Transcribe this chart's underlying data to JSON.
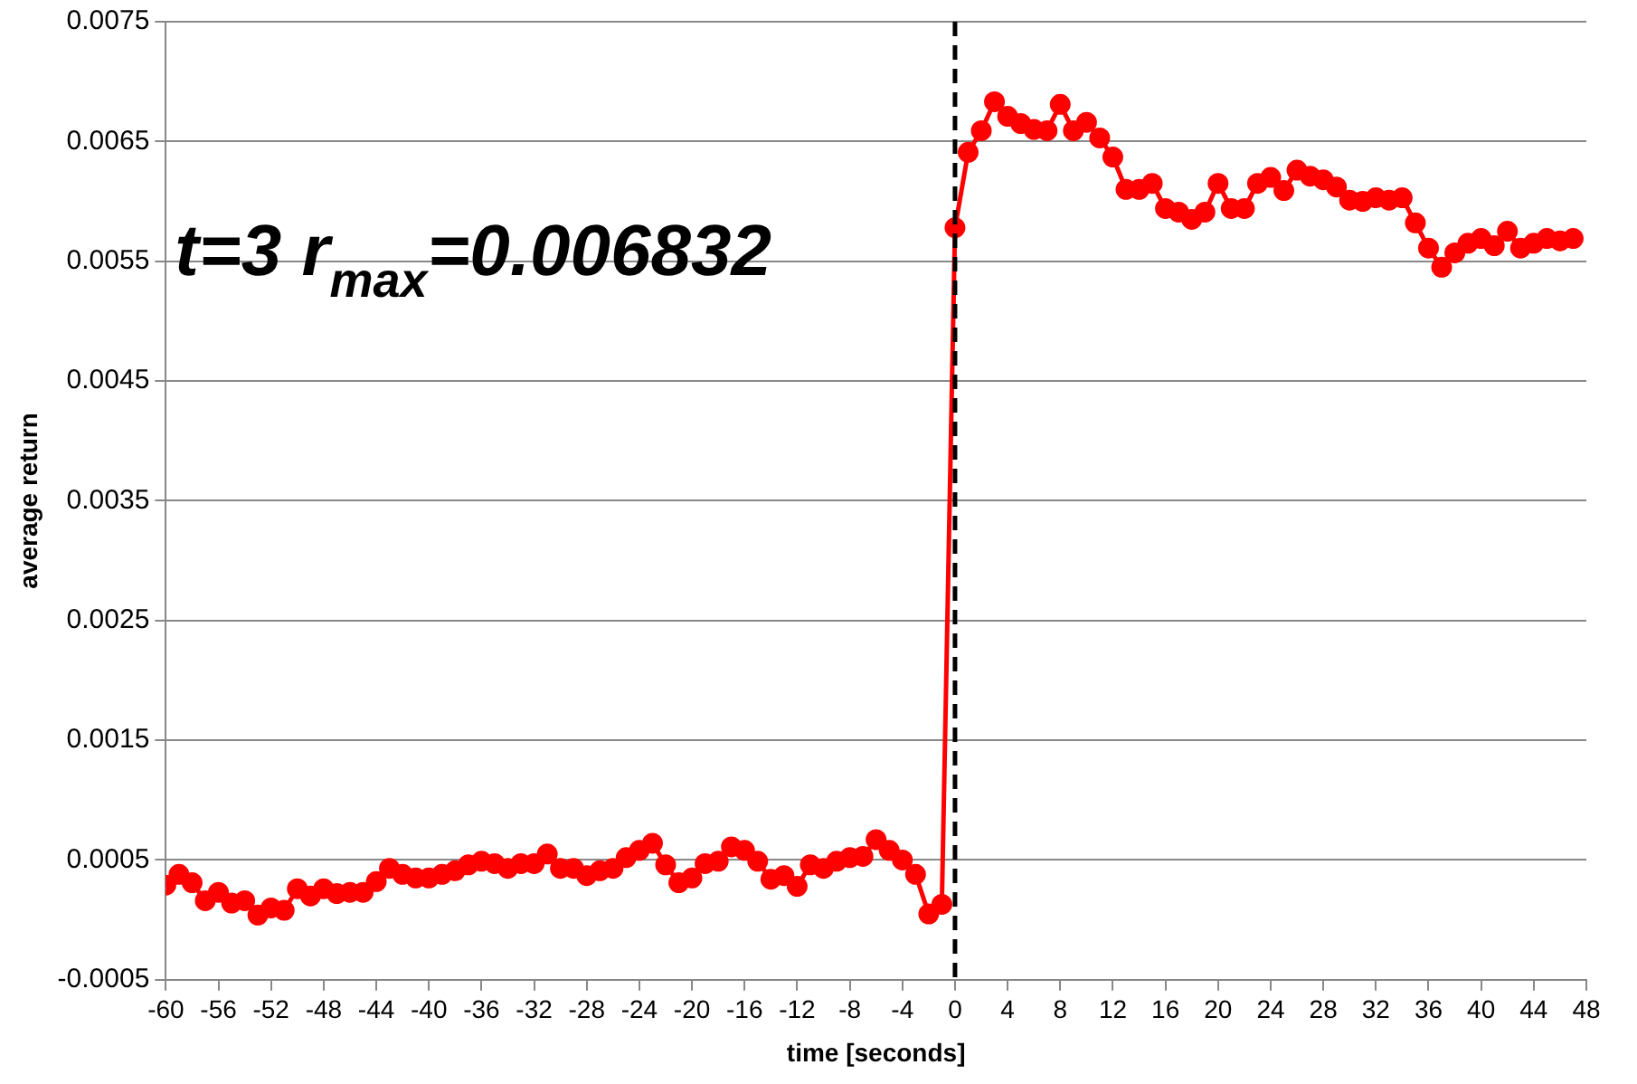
{
  "chart_data": {
    "type": "line",
    "xlabel": "time [seconds]",
    "ylabel": "average return",
    "x": [
      -60,
      -59,
      -58,
      -57,
      -56,
      -55,
      -54,
      -53,
      -52,
      -51,
      -50,
      -49,
      -48,
      -47,
      -46,
      -45,
      -44,
      -43,
      -42,
      -41,
      -40,
      -39,
      -38,
      -37,
      -36,
      -35,
      -34,
      -33,
      -32,
      -31,
      -30,
      -29,
      -28,
      -27,
      -26,
      -25,
      -24,
      -23,
      -22,
      -21,
      -20,
      -19,
      -18,
      -17,
      -16,
      -15,
      -14,
      -13,
      -12,
      -11,
      -10,
      -9,
      -8,
      -7,
      -6,
      -5,
      -4,
      -3,
      -2,
      -1,
      0,
      1,
      2,
      3,
      4,
      5,
      6,
      7,
      8,
      9,
      10,
      11,
      12,
      13,
      14,
      15,
      16,
      17,
      18,
      19,
      20,
      21,
      22,
      23,
      24,
      25,
      26,
      27,
      28,
      29,
      30,
      31,
      32,
      33,
      34,
      35,
      36,
      37,
      38,
      39,
      40,
      41,
      42,
      43,
      44,
      45,
      46,
      47
    ],
    "series": [
      {
        "color": "#ff0000",
        "values": [
          0.00029,
          0.00038,
          0.00031,
          0.00016,
          0.00023,
          0.00014,
          0.00016,
          4e-05,
          0.0001,
          8e-05,
          0.00026,
          0.0002,
          0.00026,
          0.00022,
          0.00023,
          0.00023,
          0.00032,
          0.00043,
          0.00038,
          0.00035,
          0.00035,
          0.00038,
          0.00041,
          0.00046,
          0.00049,
          0.00047,
          0.00043,
          0.00047,
          0.00047,
          0.00055,
          0.00043,
          0.00043,
          0.00037,
          0.00041,
          0.00043,
          0.00052,
          0.00058,
          0.00064,
          0.00046,
          0.00031,
          0.00035,
          0.00047,
          0.00049,
          0.00061,
          0.00058,
          0.00049,
          0.00034,
          0.00037,
          0.00028,
          0.00046,
          0.00043,
          0.00049,
          0.00052,
          0.00053,
          0.00067,
          0.00058,
          0.0005,
          0.00038,
          5e-05,
          0.00013,
          0.00578,
          0.00641,
          0.00659,
          0.006832,
          0.00671,
          0.00665,
          0.0066,
          0.00659,
          0.00681,
          0.00659,
          0.00666,
          0.00653,
          0.00637,
          0.0061,
          0.0061,
          0.00615,
          0.00594,
          0.00591,
          0.00585,
          0.00591,
          0.00615,
          0.00594,
          0.00594,
          0.00615,
          0.0062,
          0.00609,
          0.00626,
          0.00621,
          0.00618,
          0.00612,
          0.00601,
          0.006,
          0.00603,
          0.00601,
          0.00603,
          0.00582,
          0.00561,
          0.00545,
          0.00557,
          0.00565,
          0.00569,
          0.00563,
          0.00575,
          0.00561,
          0.00565,
          0.00569,
          0.00567,
          0.00569
        ]
      }
    ],
    "xlim": [
      -60,
      48
    ],
    "xticks": [
      -60,
      -56,
      -52,
      -48,
      -44,
      -40,
      -36,
      -32,
      -28,
      -24,
      -20,
      -16,
      -12,
      -8,
      -4,
      0,
      4,
      8,
      12,
      16,
      20,
      24,
      28,
      32,
      36,
      40,
      44,
      48
    ],
    "ylim": [
      -0.0005,
      0.0075
    ],
    "yticks": [
      -0.0005,
      0.0005,
      0.0015,
      0.0025,
      0.0035,
      0.0045,
      0.0055,
      0.0065,
      0.0075
    ],
    "grid": "y",
    "legend": false,
    "marker": "circle",
    "line_style": "solid",
    "ref_lines": [
      {
        "axis": "x",
        "value": 0,
        "color": "#000000",
        "line_style": "dashed"
      }
    ],
    "annotations": [
      "t=3 r$_{max}$=0.006832"
    ]
  }
}
